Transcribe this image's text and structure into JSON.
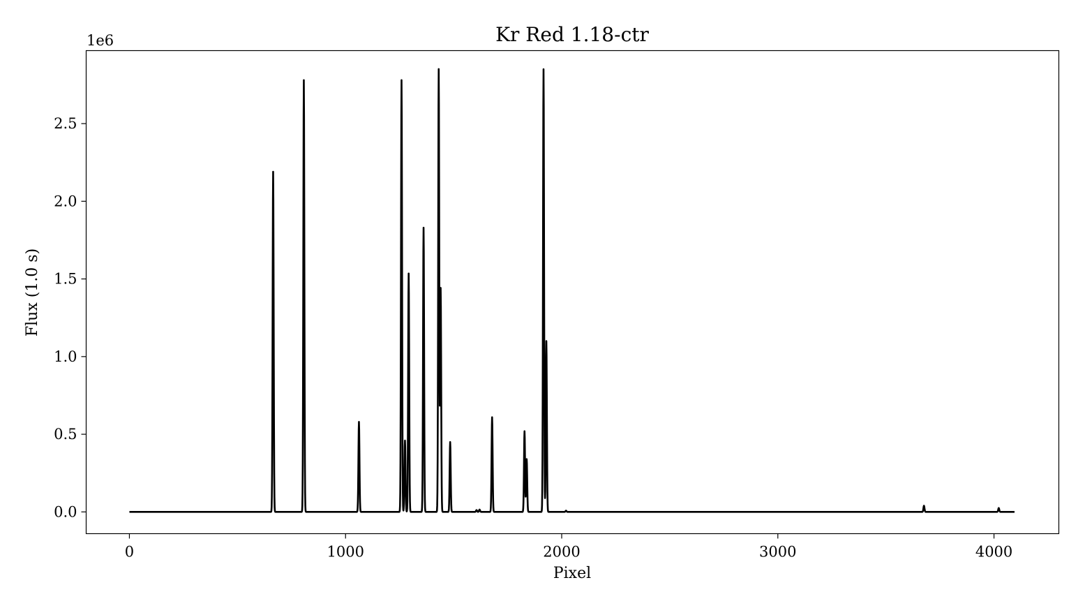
{
  "chart_data": {
    "type": "line",
    "title": "Kr Red 1.18-ctr",
    "xlabel": "Pixel",
    "ylabel": "Flux (1.0 s)",
    "y_offset_text": "1e6",
    "xlim": [
      -200,
      4300
    ],
    "ylim": [
      -140000,
      2970000
    ],
    "xticks": [
      0,
      1000,
      2000,
      3000,
      4000
    ],
    "xtick_labels": [
      "0",
      "1000",
      "2000",
      "3000",
      "4000"
    ],
    "yticks": [
      0,
      500000,
      1000000,
      1500000,
      2000000,
      2500000
    ],
    "ytick_labels": [
      "0.0",
      "0.5",
      "1.0",
      "1.5",
      "2.0",
      "2.5"
    ],
    "grid": false,
    "color": "#000000",
    "x_range": [
      0,
      4095
    ],
    "series": [
      {
        "baseline": 0,
        "peaks": [
          {
            "x": 665,
            "y": 2190000
          },
          {
            "x": 807,
            "y": 2780000
          },
          {
            "x": 1062,
            "y": 580000
          },
          {
            "x": 1259,
            "y": 2780000
          },
          {
            "x": 1275,
            "y": 460000
          },
          {
            "x": 1292,
            "y": 1535000
          },
          {
            "x": 1361,
            "y": 1830000
          },
          {
            "x": 1431,
            "y": 2850000
          },
          {
            "x": 1440,
            "y": 1440000
          },
          {
            "x": 1484,
            "y": 450000
          },
          {
            "x": 1606,
            "y": 12000
          },
          {
            "x": 1620,
            "y": 15000
          },
          {
            "x": 1678,
            "y": 610000
          },
          {
            "x": 1828,
            "y": 520000
          },
          {
            "x": 1838,
            "y": 340000
          },
          {
            "x": 1916,
            "y": 2850000
          },
          {
            "x": 1929,
            "y": 1100000
          },
          {
            "x": 2020,
            "y": 8000
          },
          {
            "x": 3676,
            "y": 40000
          },
          {
            "x": 4022,
            "y": 25000
          }
        ]
      }
    ]
  }
}
